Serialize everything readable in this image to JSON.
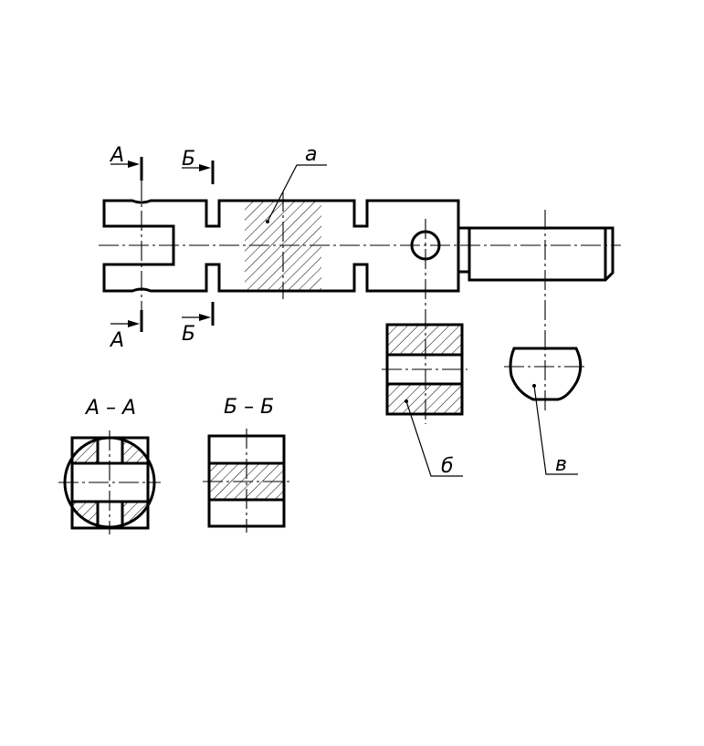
{
  "labels": {
    "cut_a_top": "А",
    "cut_a_bottom": "А",
    "cut_b_top": "Б",
    "cut_b_bottom": "Б",
    "callout_a": "а",
    "callout_b": "б",
    "callout_v": "в",
    "section_aa_title": "А – А",
    "section_bb_title": "Б – Б"
  },
  "colors": {
    "line": "#000000",
    "background": "#ffffff"
  }
}
